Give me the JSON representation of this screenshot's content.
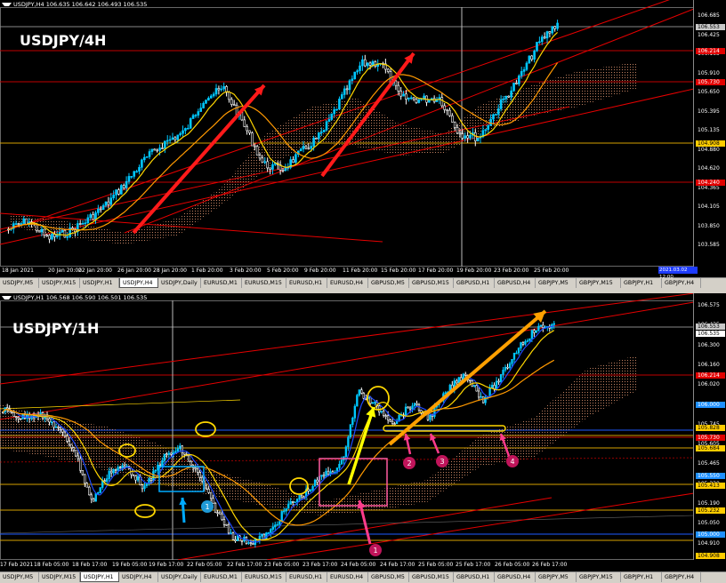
{
  "colors": {
    "bull": "#00c8ff",
    "bear": "#ffffff",
    "ma_fast": "#ffd700",
    "ma_slow": "#ff9900",
    "ma_blue": "#1e4bff",
    "cloud": "#c08060",
    "trend_red": "#e60000",
    "hline_red": "#c00000",
    "hline_yellow": "#d4a000"
  },
  "top_chart": {
    "header": "USDJPY,H4  106.635 106.642 106.493 106.535",
    "title": "USDJPY/4H",
    "y_ticks": [
      "106.685",
      "106.425",
      "106.165",
      "105.910",
      "105.650",
      "105.395",
      "105.135",
      "104.880",
      "104.620",
      "104.365",
      "104.105",
      "103.850",
      "103.585"
    ],
    "price_tags": [
      {
        "text": "106.553",
        "bg": "#c8c8c8",
        "fg": "#000"
      },
      {
        "text": "106.214",
        "bg": "#e00000",
        "fg": "#fff"
      },
      {
        "text": "105.730",
        "bg": "#e00000",
        "fg": "#fff"
      },
      {
        "text": "104.908",
        "bg": "#ffcc00",
        "fg": "#000"
      },
      {
        "text": "104.240",
        "bg": "#e00000",
        "fg": "#fff"
      }
    ],
    "time_marker": "2021.03.02 12:00",
    "x_ticks": [
      "18 Jan 2021",
      "20 Jan 20:00",
      "22 Jan 20:00",
      "26 Jan 20:00",
      "28 Jan 20:00",
      "1 Feb 20:00",
      "3 Feb 20:00",
      "5 Feb 20:00",
      "9 Feb 20:00",
      "11 Feb 20:00",
      "15 Feb 20:00",
      "17 Feb 20:00",
      "19 Feb 20:00",
      "23 Feb 20:00",
      "25 Feb 20:00"
    ],
    "tabs": [
      "USDJPY,M5",
      "USDJPY,M15",
      "USDJPY,H1",
      "USDJPY,H4",
      "USDJPY,Daily",
      "EURUSD,M1",
      "EURUSD,M15",
      "EURUSD,H1",
      "EURUSD,H4",
      "GBPUSD,M5",
      "GBPUSD,M15",
      "GBPUSD,H1",
      "GBPUSD,H4",
      "GBPJPY,M5",
      "GBPJPY,M15",
      "GBPJPY,H1",
      "GBPJPY,H4"
    ],
    "active_tab": "USDJPY,H4"
  },
  "bottom_chart": {
    "header": "USDJPY,H1  106.568 106.590 106.501 106.535",
    "title": "USDJPY/1H",
    "y_ticks": [
      "106.575",
      "106.435",
      "106.300",
      "106.160",
      "106.020",
      "105.880",
      "105.745",
      "105.605",
      "105.465",
      "105.330",
      "105.190",
      "105.050",
      "104.910"
    ],
    "price_tags": [
      {
        "text": "106.553",
        "bg": "#c8c8c8",
        "fg": "#000"
      },
      {
        "text": "106.535",
        "bg": "#ffffff",
        "fg": "#000"
      },
      {
        "text": "106.214",
        "bg": "#e00000",
        "fg": "#fff"
      },
      {
        "text": "106.000",
        "bg": "#1e90ff",
        "fg": "#fff"
      },
      {
        "text": "105.828",
        "bg": "#ffcc00",
        "fg": "#000"
      },
      {
        "text": "105.730",
        "bg": "#e00000",
        "fg": "#fff"
      },
      {
        "text": "105.684",
        "bg": "#ffcc00",
        "fg": "#000"
      },
      {
        "text": "105.550",
        "bg": "#1e90ff",
        "fg": "#fff"
      },
      {
        "text": "105.413",
        "bg": "#ffcc00",
        "fg": "#000"
      },
      {
        "text": "105.232",
        "bg": "#ffcc00",
        "fg": "#000"
      },
      {
        "text": "105.000",
        "bg": "#1e90ff",
        "fg": "#fff"
      },
      {
        "text": "104.908",
        "bg": "#ffcc00",
        "fg": "#000"
      }
    ],
    "x_ticks": [
      "17 Feb 2021",
      "18 Feb 05:00",
      "18 Feb 17:00",
      "19 Feb 05:00",
      "19 Feb 17:00",
      "22 Feb 05:00",
      "22 Feb 17:00",
      "23 Feb 05:00",
      "23 Feb 17:00",
      "24 Feb 05:00",
      "24 Feb 17:00",
      "25 Feb 05:00",
      "25 Feb 17:00",
      "26 Feb 05:00",
      "26 Feb 17:00"
    ],
    "badges": [
      "1",
      "1",
      "2",
      "3",
      "4"
    ],
    "tabs": [
      "USDJPY,M5",
      "USDJPY,M15",
      "USDJPY,H1",
      "USDJPY,H4",
      "USDJPY,Daily",
      "EURUSD,M1",
      "EURUSD,M15",
      "EURUSD,H1",
      "EURUSD,H4",
      "GBPUSD,M5",
      "GBPUSD,M15",
      "GBPUSD,H1",
      "GBPUSD,H4",
      "GBPJPY,M5",
      "GBPJPY,M15",
      "GBPJPY,H1",
      "GBPJPY,H4"
    ],
    "active_tab": "USDJPY,H1"
  }
}
